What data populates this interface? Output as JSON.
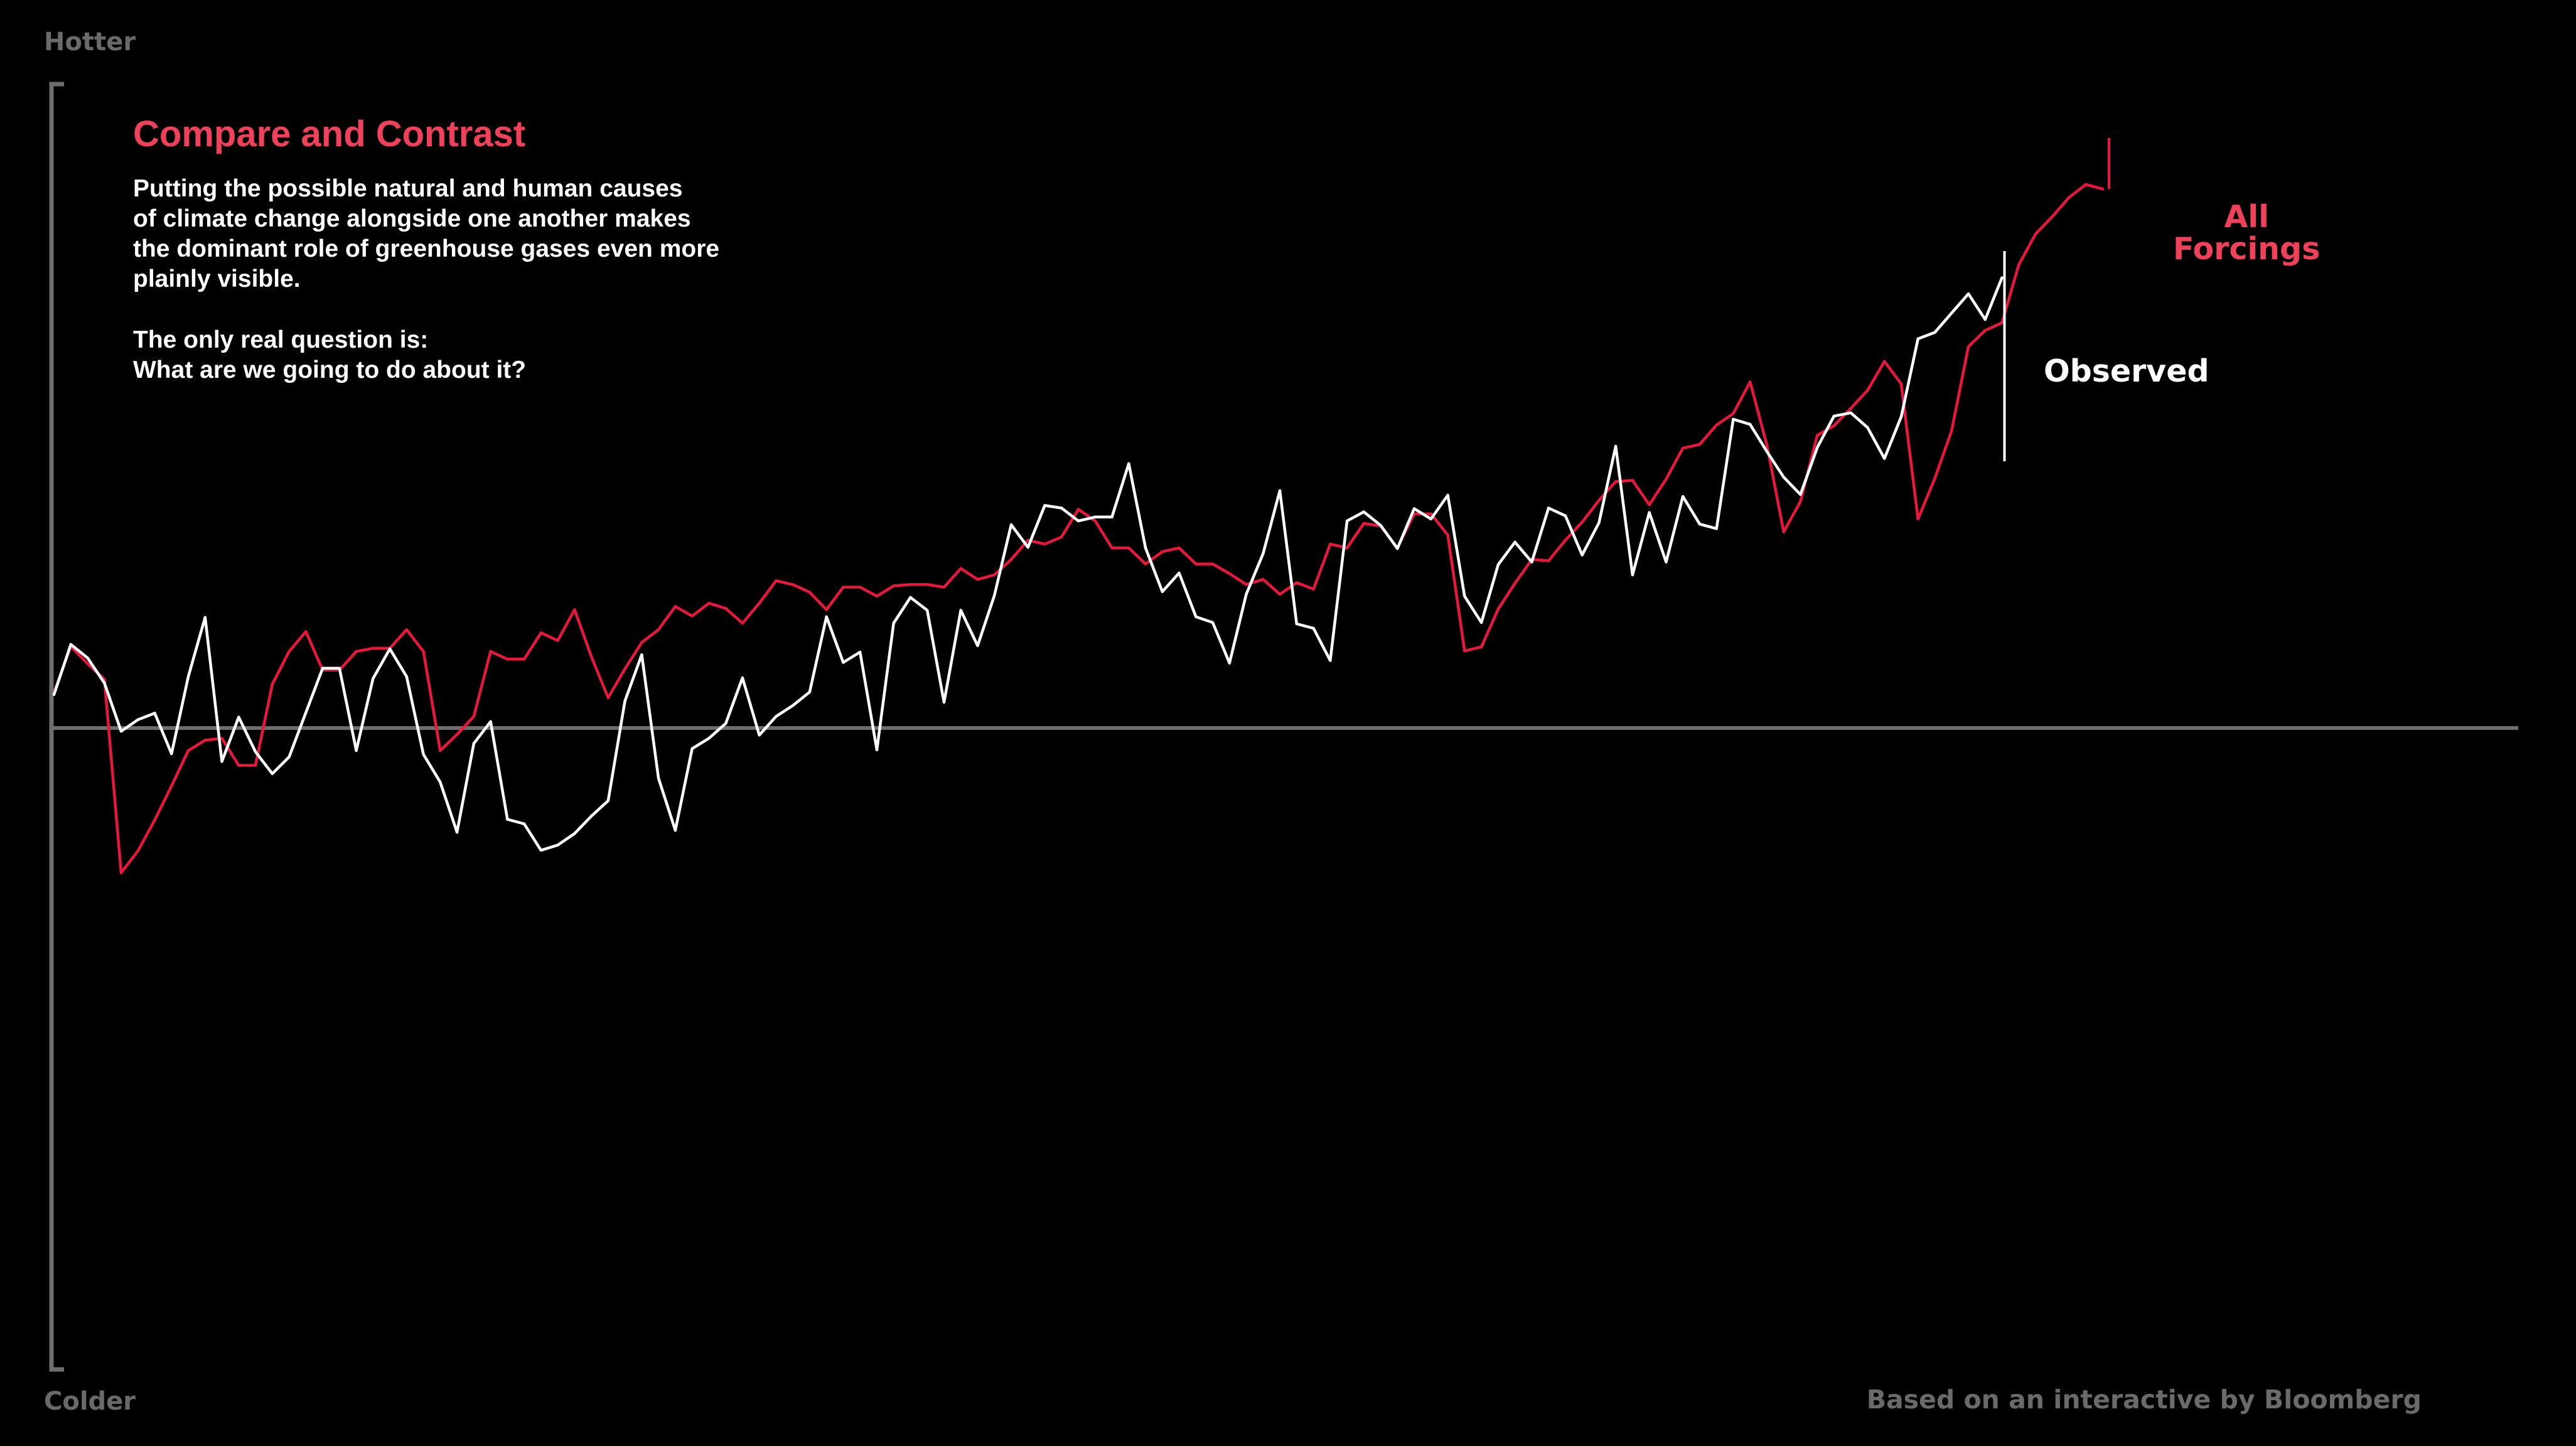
{
  "axis": {
    "top_label": "Hotter",
    "bottom_label": "Colder"
  },
  "intro": {
    "title": "Compare and Contrast",
    "paragraph_lines": [
      "Putting the possible natural and human causes",
      "of climate change alongside one another makes",
      "the dominant role of greenhouse gases even more",
      "plainly visible."
    ],
    "question_lines": [
      "The only real question is:",
      "What are we going to do about it?"
    ]
  },
  "source": "Based on an interactive by Bloomberg",
  "colors": {
    "background": "#000000",
    "forcings": "#e8173c",
    "title": "#f0415a",
    "observed": "#ffffff",
    "axis": "#6e6e6e",
    "axis_text": "#6a6a6a",
    "label_forcings": "#f0415a"
  },
  "chart_data": {
    "type": "line",
    "ylim": [
      -1.0,
      1.0
    ],
    "baseline": 0,
    "grid": false,
    "legend": "inline labels at line ends",
    "series": [
      {
        "name": "All Forcings",
        "label_lines": [
          "All",
          "Forcings"
        ],
        "values": [
          0.055,
          0.127,
          0.1,
          0.076,
          -0.225,
          -0.191,
          -0.143,
          -0.09,
          -0.035,
          -0.019,
          -0.016,
          -0.058,
          -0.058,
          0.068,
          0.119,
          0.15,
          0.09,
          0.09,
          0.119,
          0.124,
          0.124,
          0.153,
          0.119,
          -0.035,
          -0.01,
          0.018,
          0.119,
          0.107,
          0.107,
          0.148,
          0.136,
          0.184,
          0.111,
          0.047,
          0.092,
          0.133,
          0.153,
          0.189,
          0.174,
          0.194,
          0.186,
          0.163,
          0.194,
          0.229,
          0.223,
          0.211,
          0.184,
          0.219,
          0.219,
          0.205,
          0.221,
          0.223,
          0.223,
          0.219,
          0.248,
          0.231,
          0.238,
          0.262,
          0.292,
          0.286,
          0.297,
          0.34,
          0.322,
          0.28,
          0.28,
          0.255,
          0.274,
          0.28,
          0.255,
          0.255,
          0.24,
          0.223,
          0.231,
          0.208,
          0.226,
          0.216,
          0.286,
          0.28,
          0.318,
          0.314,
          0.28,
          0.333,
          0.333,
          0.3,
          0.12,
          0.126,
          0.185,
          0.225,
          0.262,
          0.26,
          0.292,
          0.32,
          0.354,
          0.383,
          0.385,
          0.347,
          0.387,
          0.435,
          0.441,
          0.471,
          0.489,
          0.538,
          0.44,
          0.305,
          0.352,
          0.455,
          0.47,
          0.497,
          0.525,
          0.57,
          0.535,
          0.325,
          0.388,
          0.462,
          0.593,
          0.618,
          0.63,
          0.72,
          0.768,
          0.795,
          0.825,
          0.845,
          0.838
        ],
        "x_end_label": "All Forcings"
      },
      {
        "name": "Observed",
        "label_lines": [
          "Observed"
        ],
        "values": [
          0.052,
          0.13,
          0.109,
          0.07,
          -0.005,
          0.013,
          0.023,
          -0.04,
          0.08,
          0.172,
          -0.052,
          0.017,
          -0.037,
          -0.071,
          -0.045,
          0.024,
          0.093,
          0.093,
          -0.035,
          0.077,
          0.123,
          0.08,
          -0.041,
          -0.084,
          -0.162,
          -0.024,
          0.01,
          -0.142,
          -0.149,
          -0.19,
          -0.182,
          -0.164,
          -0.137,
          -0.113,
          0.042,
          0.114,
          -0.078,
          -0.159,
          -0.032,
          -0.016,
          0.007,
          0.078,
          -0.011,
          0.018,
          0.035,
          0.056,
          0.173,
          0.102,
          0.118,
          -0.034,
          0.163,
          0.203,
          0.183,
          0.04,
          0.183,
          0.128,
          0.206,
          0.316,
          0.281,
          0.346,
          0.342,
          0.322,
          0.328,
          0.328,
          0.411,
          0.28,
          0.212,
          0.241,
          0.173,
          0.164,
          0.101,
          0.208,
          0.271,
          0.369,
          0.162,
          0.155,
          0.105,
          0.322,
          0.336,
          0.315,
          0.279,
          0.341,
          0.325,
          0.362,
          0.205,
          0.164,
          0.254,
          0.289,
          0.258,
          0.342,
          0.33,
          0.269,
          0.319,
          0.438,
          0.238,
          0.335,
          0.258,
          0.36,
          0.317,
          0.31,
          0.48,
          0.472,
          0.43,
          0.39,
          0.363,
          0.436,
          0.485,
          0.49,
          0.467,
          0.419,
          0.484,
          0.605,
          0.615,
          0.645,
          0.675,
          0.635,
          0.7
        ]
      }
    ]
  }
}
